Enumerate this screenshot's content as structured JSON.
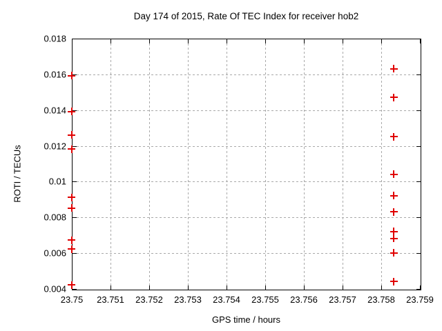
{
  "chart_data": {
    "type": "scatter",
    "title": "Day 174 of 2015, Rate Of TEC Index for receiver hob2",
    "xlabel": "GPS time / hours",
    "ylabel": "ROTI / TECUs",
    "xlim": [
      23.75,
      23.759
    ],
    "ylim": [
      0.004,
      0.018
    ],
    "grid": true,
    "legend_position": "none",
    "marker": "plus",
    "marker_color": "#e00000",
    "grid_color": "#a8a8a8",
    "border_color": "#000000",
    "xticks": [
      {
        "v": 23.75,
        "label": "23.75"
      },
      {
        "v": 23.751,
        "label": "23.751"
      },
      {
        "v": 23.752,
        "label": "23.752"
      },
      {
        "v": 23.753,
        "label": "23.753"
      },
      {
        "v": 23.754,
        "label": "23.754"
      },
      {
        "v": 23.755,
        "label": "23.755"
      },
      {
        "v": 23.756,
        "label": "23.756"
      },
      {
        "v": 23.757,
        "label": "23.757"
      },
      {
        "v": 23.758,
        "label": "23.758"
      },
      {
        "v": 23.759,
        "label": "23.759"
      }
    ],
    "yticks": [
      {
        "v": 0.004,
        "label": "0.004"
      },
      {
        "v": 0.006,
        "label": "0.006"
      },
      {
        "v": 0.008,
        "label": "0.008"
      },
      {
        "v": 0.01,
        "label": "0.01"
      },
      {
        "v": 0.012,
        "label": "0.012"
      },
      {
        "v": 0.014,
        "label": "0.014"
      },
      {
        "v": 0.016,
        "label": "0.016"
      },
      {
        "v": 0.018,
        "label": "0.018"
      }
    ],
    "series": [
      {
        "name": "ROTI",
        "points": [
          [
            23.75,
            0.0159
          ],
          [
            23.75,
            0.0139
          ],
          [
            23.75,
            0.0126
          ],
          [
            23.75,
            0.0118
          ],
          [
            23.75,
            0.0091
          ],
          [
            23.75,
            0.0085
          ],
          [
            23.75,
            0.0067
          ],
          [
            23.75,
            0.0062
          ],
          [
            23.75,
            0.0042
          ],
          [
            23.758333,
            0.0163
          ],
          [
            23.758333,
            0.0147
          ],
          [
            23.758333,
            0.0125
          ],
          [
            23.758333,
            0.0104
          ],
          [
            23.758333,
            0.0092
          ],
          [
            23.758333,
            0.0083
          ],
          [
            23.758333,
            0.0072
          ],
          [
            23.758333,
            0.0068
          ],
          [
            23.758333,
            0.006
          ],
          [
            23.758333,
            0.0044
          ]
        ]
      }
    ]
  }
}
